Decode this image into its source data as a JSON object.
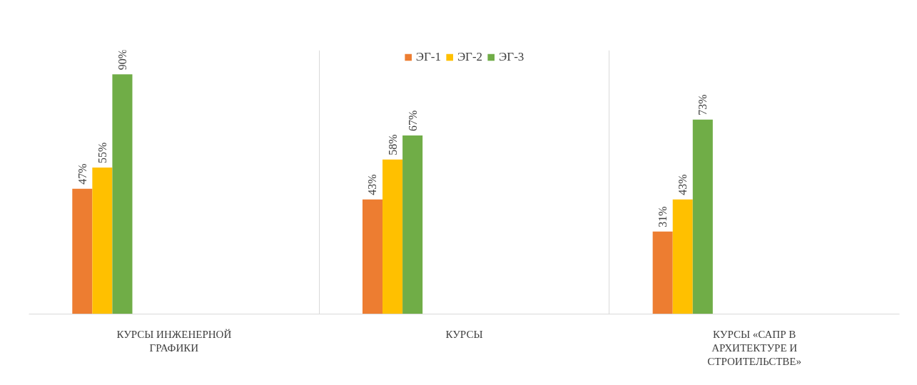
{
  "chart_data": {
    "type": "bar",
    "categories": [
      "КУРСЫ ИНЖЕНЕРНОЙ ГРАФИКИ",
      "КУРСЫ",
      "КУРСЫ «САПР В АРХИТЕКТУРЕ И СТРОИТЕЛЬСТВЕ»"
    ],
    "series": [
      {
        "name": "ЭГ-1",
        "color": "#ed7d31",
        "values": [
          47,
          43,
          31
        ],
        "value_labels": [
          "47%",
          "43%",
          "31%"
        ]
      },
      {
        "name": "ЭГ-2",
        "color": "#ffc000",
        "values": [
          55,
          58,
          43
        ],
        "value_labels": [
          "55%",
          "58%",
          "43%"
        ]
      },
      {
        "name": "ЭГ-3",
        "color": "#70ad47",
        "values": [
          90,
          67,
          73
        ],
        "value_labels": [
          "90%",
          "67%",
          "73%"
        ]
      }
    ],
    "tick_labels": "x",
    "legend": "top",
    "grid": "x"
  }
}
